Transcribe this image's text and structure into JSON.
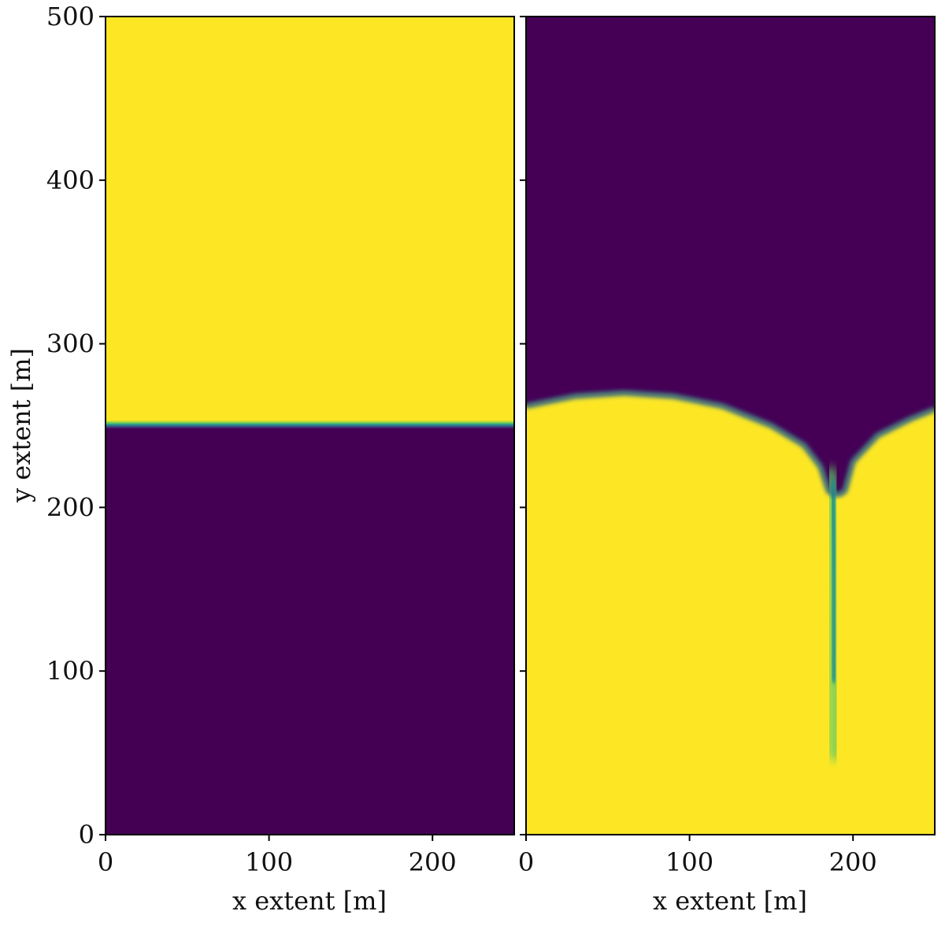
{
  "chart_data": [
    {
      "type": "heatmap",
      "panel": "left",
      "xlabel": "x extent [m]",
      "ylabel": "y extent [m]",
      "xlim": [
        0,
        250
      ],
      "ylim": [
        0,
        500
      ],
      "xticks": [
        0,
        100,
        200
      ],
      "yticks": [
        0,
        100,
        200,
        300,
        400,
        500
      ],
      "field_description": {
        "upper_value": 1,
        "lower_value": 0,
        "interface_y": 251
      },
      "colors": {
        "low": "#440154",
        "mid": "#21918c",
        "high": "#fde725"
      }
    },
    {
      "type": "heatmap",
      "panel": "right",
      "xlabel": "x extent [m]",
      "ylabel": "",
      "xlim": [
        0,
        250
      ],
      "ylim": [
        0,
        500
      ],
      "xticks": [
        0,
        100,
        200
      ],
      "yticks": [
        0,
        100,
        200,
        300,
        400,
        500
      ],
      "field_description": {
        "upper_value": 0,
        "lower_value": 1,
        "interface_profile": [
          [
            0,
            262
          ],
          [
            30,
            268
          ],
          [
            60,
            270
          ],
          [
            90,
            268
          ],
          [
            120,
            262
          ],
          [
            150,
            250
          ],
          [
            170,
            238
          ],
          [
            180,
            225
          ],
          [
            185,
            210
          ],
          [
            188,
            160
          ],
          [
            189,
            100
          ],
          [
            190,
            50
          ],
          [
            191,
            100
          ],
          [
            192,
            160
          ],
          [
            195,
            210
          ],
          [
            200,
            228
          ],
          [
            215,
            244
          ],
          [
            235,
            254
          ],
          [
            250,
            260
          ]
        ]
      },
      "colors": {
        "low": "#440154",
        "mid": "#21918c",
        "high": "#fde725"
      }
    }
  ]
}
